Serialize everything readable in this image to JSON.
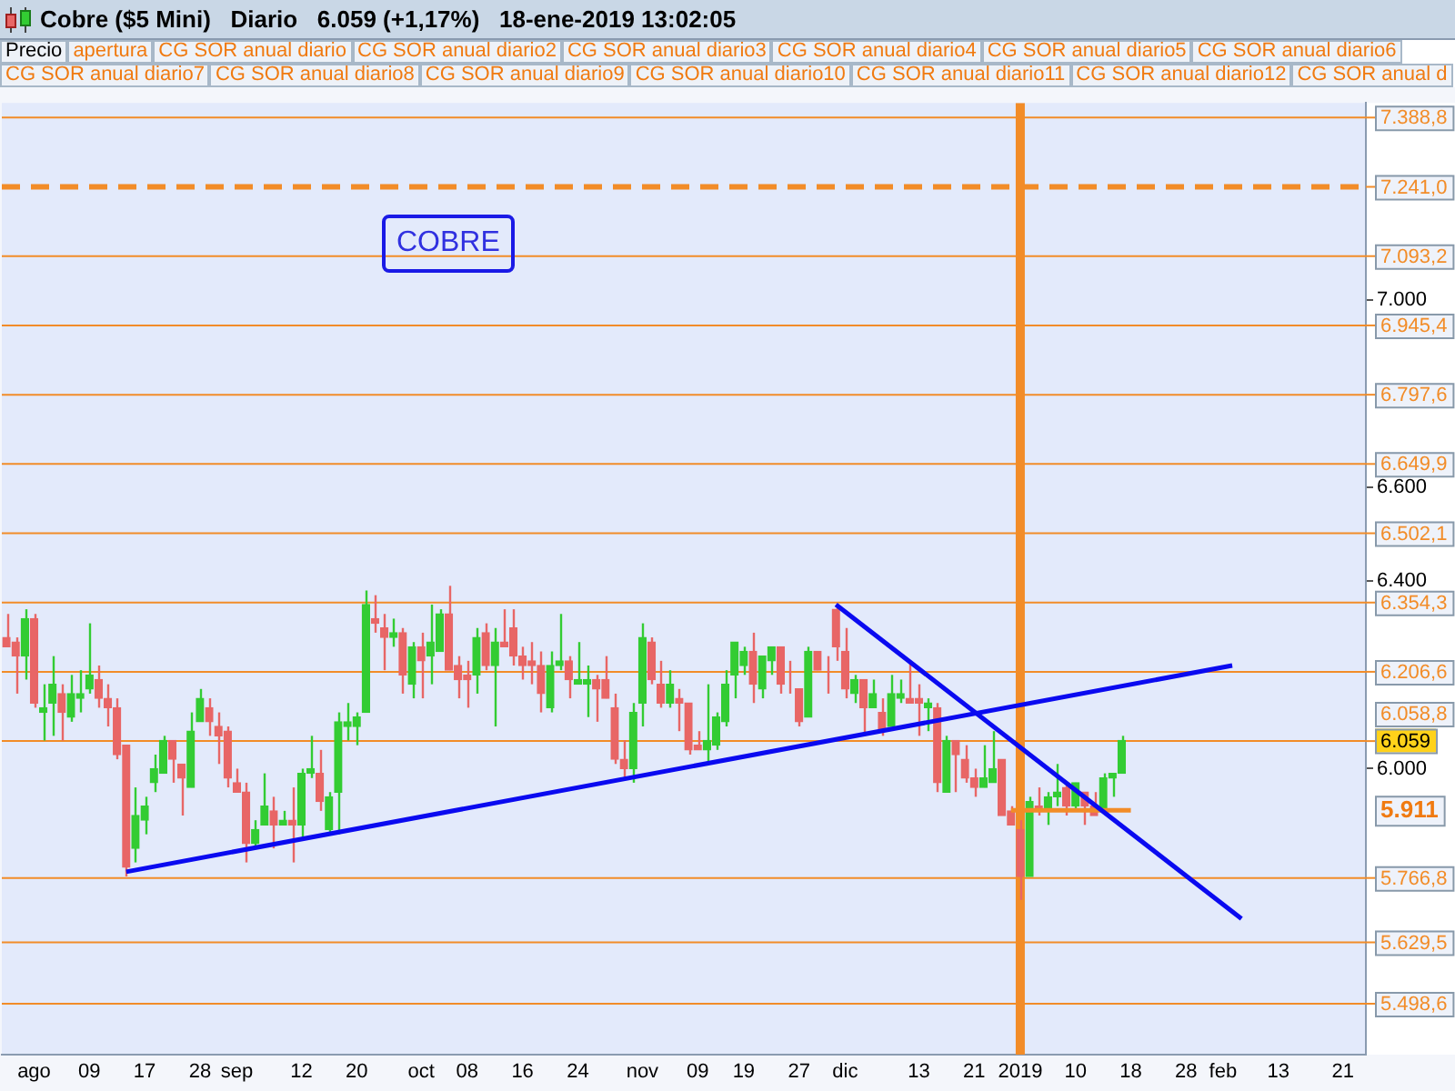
{
  "chart_data": {
    "type": "candlestick",
    "title": "Cobre ($5 Mini)   Diario   6.059 (+1,17%)   18-ene-2019 13:02:05",
    "categories": [
      null,
      null,
      null,
      "ago",
      null,
      null,
      null,
      null,
      null,
      "09",
      null,
      null,
      null,
      null,
      null,
      "17",
      null,
      null,
      null,
      null,
      null,
      "28",
      null,
      null,
      null,
      "sep",
      null,
      null,
      null,
      null,
      null,
      null,
      "12",
      null,
      null,
      null,
      null,
      null,
      "20",
      null,
      null,
      null,
      null,
      null,
      null,
      "oct",
      null,
      null,
      null,
      null,
      "08",
      null,
      null,
      null,
      null,
      null,
      "16",
      null,
      null,
      null,
      null,
      null,
      "24",
      null,
      null,
      null,
      null,
      null,
      null,
      "nov",
      null,
      null,
      null,
      null,
      null,
      "09",
      null,
      null,
      null,
      null,
      "19",
      null,
      null,
      null,
      null,
      null,
      "27",
      null,
      null,
      null,
      null,
      "dic",
      null,
      null,
      null,
      null,
      null,
      null,
      null,
      "13",
      null,
      null,
      null,
      null,
      null,
      "21",
      null,
      null,
      null,
      null,
      "2019",
      null,
      null,
      null,
      null,
      null,
      "10",
      null,
      null,
      null,
      null,
      null,
      "18",
      null,
      null,
      null,
      null,
      null,
      "28",
      null,
      null,
      null,
      "feb",
      null,
      null,
      null,
      null,
      null,
      "13",
      null,
      null,
      null,
      null,
      null,
      null,
      "21",
      null,
      null
    ],
    "ohlc": [
      [
        6280,
        6330,
        6260,
        6260
      ],
      [
        6270,
        6280,
        6160,
        6240
      ],
      [
        6240,
        6340,
        6190,
        6320
      ],
      [
        6320,
        6330,
        6130,
        6140
      ],
      [
        6120,
        6180,
        6060,
        6130
      ],
      [
        6140,
        6240,
        6070,
        6180
      ],
      [
        6160,
        6180,
        6060,
        6120
      ],
      [
        6110,
        6200,
        6100,
        6160
      ],
      [
        6150,
        6210,
        6120,
        6160
      ],
      [
        6170,
        6310,
        6160,
        6200
      ],
      [
        6190,
        6220,
        6130,
        6150
      ],
      [
        6150,
        6180,
        6090,
        6130
      ],
      [
        6130,
        6150,
        6020,
        6030
      ],
      [
        6050,
        6050,
        5770,
        5790
      ],
      [
        5830,
        5960,
        5800,
        5900
      ],
      [
        5890,
        5940,
        5860,
        5920
      ],
      [
        5970,
        6030,
        5950,
        6000
      ],
      [
        5990,
        6070,
        5990,
        6060
      ],
      [
        6060,
        6060,
        5970,
        6020
      ],
      [
        6010,
        6010,
        5900,
        5980
      ],
      [
        5960,
        6120,
        5960,
        6080
      ],
      [
        6100,
        6170,
        6100,
        6150
      ],
      [
        6130,
        6150,
        6070,
        6100
      ],
      [
        6090,
        6120,
        6010,
        6070
      ],
      [
        6080,
        6090,
        5960,
        5980
      ],
      [
        5970,
        6000,
        5950,
        5950
      ],
      [
        5950,
        5970,
        5800,
        5840
      ],
      [
        5840,
        5890,
        5830,
        5870
      ],
      [
        5880,
        5990,
        5880,
        5920
      ],
      [
        5910,
        5940,
        5830,
        5880
      ],
      [
        5880,
        5910,
        5880,
        5890
      ],
      [
        5890,
        5960,
        5800,
        5880
      ],
      [
        5880,
        6000,
        5850,
        5990
      ],
      [
        5990,
        6070,
        5980,
        6000
      ],
      [
        5990,
        6040,
        5910,
        5930
      ],
      [
        5870,
        5950,
        5860,
        5940
      ],
      [
        5950,
        6120,
        5860,
        6100
      ],
      [
        6090,
        6140,
        6060,
        6100
      ],
      [
        6090,
        6120,
        6050,
        6110
      ],
      [
        6120,
        6380,
        6120,
        6350
      ],
      [
        6320,
        6370,
        6290,
        6310
      ],
      [
        6300,
        6330,
        6210,
        6280
      ],
      [
        6280,
        6320,
        6260,
        6290
      ],
      [
        6290,
        6300,
        6160,
        6200
      ],
      [
        6180,
        6270,
        6150,
        6260
      ],
      [
        6260,
        6290,
        6150,
        6230
      ],
      [
        6240,
        6350,
        6180,
        6270
      ],
      [
        6250,
        6340,
        6250,
        6330
      ],
      [
        6330,
        6390,
        6210,
        6210
      ],
      [
        6220,
        6240,
        6150,
        6190
      ],
      [
        6200,
        6230,
        6130,
        6190
      ],
      [
        6200,
        6300,
        6160,
        6280
      ],
      [
        6290,
        6310,
        6210,
        6220
      ],
      [
        6220,
        6300,
        6090,
        6270
      ],
      [
        6270,
        6340,
        6260,
        6260
      ],
      [
        6300,
        6340,
        6220,
        6240
      ],
      [
        6240,
        6260,
        6190,
        6220
      ],
      [
        6230,
        6270,
        6180,
        6220
      ],
      [
        6220,
        6250,
        6120,
        6160
      ],
      [
        6130,
        6250,
        6120,
        6220
      ],
      [
        6220,
        6330,
        6210,
        6230
      ],
      [
        6230,
        6240,
        6150,
        6190
      ],
      [
        6180,
        6270,
        6180,
        6190
      ],
      [
        6180,
        6220,
        6110,
        6190
      ],
      [
        6190,
        6200,
        6100,
        6170
      ],
      [
        6190,
        6240,
        6150,
        6150
      ],
      [
        6130,
        6160,
        6010,
        6020
      ],
      [
        6020,
        6060,
        5980,
        6000
      ],
      [
        6000,
        6140,
        5970,
        6120
      ],
      [
        6140,
        6310,
        6090,
        6280
      ],
      [
        6270,
        6280,
        6180,
        6190
      ],
      [
        6180,
        6230,
        6130,
        6140
      ],
      [
        6140,
        6210,
        6130,
        6180
      ],
      [
        6150,
        6170,
        6080,
        6140
      ],
      [
        6140,
        6140,
        6030,
        6040
      ],
      [
        6050,
        6080,
        6040,
        6040
      ],
      [
        6040,
        6180,
        6010,
        6060
      ],
      [
        6050,
        6120,
        6040,
        6110
      ],
      [
        6100,
        6210,
        6090,
        6180
      ],
      [
        6200,
        6270,
        6150,
        6270
      ],
      [
        6220,
        6260,
        6200,
        6250
      ],
      [
        6250,
        6290,
        6140,
        6180
      ],
      [
        6170,
        6240,
        6150,
        6240
      ],
      [
        6230,
        6260,
        6200,
        6260
      ],
      [
        6260,
        6260,
        6160,
        6180
      ],
      [
        6180,
        6230,
        6160,
        6180
      ],
      [
        6170,
        6170,
        6090,
        6100
      ],
      [
        6110,
        6260,
        6110,
        6250
      ],
      [
        6250,
        6250,
        6210,
        6210
      ],
      [
        6200,
        6240,
        6160,
        6200
      ],
      [
        6340,
        6350,
        6230,
        6260
      ],
      [
        6250,
        6300,
        6150,
        6170
      ],
      [
        6160,
        6200,
        6140,
        6190
      ],
      [
        6190,
        6190,
        6070,
        6130
      ],
      [
        6130,
        6190,
        6130,
        6160
      ],
      [
        6120,
        6150,
        6070,
        6080
      ],
      [
        6090,
        6200,
        6090,
        6160
      ],
      [
        6150,
        6190,
        6140,
        6160
      ],
      [
        6150,
        6230,
        6140,
        6140
      ],
      [
        6150,
        6180,
        6070,
        6140
      ],
      [
        6130,
        6150,
        6080,
        6140
      ],
      [
        6130,
        6140,
        5950,
        5970
      ],
      [
        5950,
        6070,
        5950,
        6060
      ],
      [
        6060,
        6060,
        5950,
        6030
      ],
      [
        6020,
        6050,
        5970,
        5980
      ],
      [
        5980,
        6000,
        5940,
        5960
      ],
      [
        5960,
        6050,
        5960,
        5980
      ],
      [
        5970,
        6080,
        5970,
        6000
      ],
      [
        6020,
        6020,
        5900,
        5900
      ],
      [
        5910,
        5920,
        5880,
        5880
      ],
      [
        5870,
        5890,
        5720,
        5770
      ],
      [
        5770,
        5940,
        5770,
        5930
      ],
      [
        5920,
        5960,
        5900,
        5910
      ],
      [
        5910,
        5950,
        5880,
        5940
      ],
      [
        5940,
        6010,
        5920,
        5950
      ],
      [
        5960,
        5970,
        5900,
        5920
      ],
      [
        5920,
        5970,
        5910,
        5970
      ],
      [
        5950,
        5950,
        5880,
        5920
      ],
      [
        5920,
        5950,
        5900,
        5900
      ],
      [
        5910,
        5990,
        5910,
        5980
      ],
      [
        5980,
        5990,
        5940,
        5990
      ],
      [
        5990,
        6070,
        5990,
        6060
      ],
      null,
      null,
      null,
      null,
      null,
      null,
      null,
      null,
      null,
      null,
      null,
      null,
      null,
      null,
      null,
      null,
      null,
      null,
      null,
      null,
      null,
      null,
      null,
      null,
      null,
      null
    ],
    "colors": [
      "#e86666",
      "#e86666",
      "#33cc33",
      "#e86666",
      "#33cc33",
      "#33cc33",
      "#e86666",
      "#33cc33",
      "#33cc33",
      "#33cc33",
      "#e86666",
      "#e86666",
      "#e86666",
      "#e86666",
      "#33cc33",
      "#33cc33",
      "#33cc33",
      "#33cc33",
      "#e86666",
      "#e86666",
      "#33cc33",
      "#33cc33",
      "#e86666",
      "#e86666",
      "#e86666",
      "#e86666",
      "#e86666",
      "#33cc33",
      "#33cc33",
      "#e86666",
      "#33cc33",
      "#e86666",
      "#33cc33",
      "#33cc33",
      "#e86666",
      "#33cc33",
      "#33cc33",
      "#33cc33",
      "#33cc33",
      "#33cc33",
      "#e86666",
      "#e86666",
      "#33cc33",
      "#e86666",
      "#33cc33",
      "#e86666",
      "#33cc33",
      "#33cc33",
      "#e86666",
      "#e86666",
      "#e86666",
      "#33cc33",
      "#e86666",
      "#33cc33",
      "#e86666",
      "#e86666",
      "#e86666",
      "#e86666",
      "#e86666",
      "#33cc33",
      "#33cc33",
      "#e86666",
      "#33cc33",
      "#33cc33",
      "#e86666",
      "#e86666",
      "#e86666",
      "#e86666",
      "#33cc33",
      "#33cc33",
      "#e86666",
      "#e86666",
      "#33cc33",
      "#e86666",
      "#e86666",
      "#e86666",
      "#33cc33",
      "#33cc33",
      "#33cc33",
      "#33cc33",
      "#33cc33",
      "#e86666",
      "#33cc33",
      "#33cc33",
      "#e86666",
      "#e86666",
      "#e86666",
      "#33cc33",
      "#e86666",
      "#e86666",
      "#e86666",
      "#e86666",
      "#33cc33",
      "#e86666",
      "#33cc33",
      "#e86666",
      "#33cc33",
      "#33cc33",
      "#e86666",
      "#e86666",
      "#33cc33",
      "#e86666",
      "#33cc33",
      "#e86666",
      "#e86666",
      "#e86666",
      "#33cc33",
      "#33cc33",
      "#e86666",
      "#e86666",
      "#e86666",
      "#33cc33",
      "#e86666",
      "#33cc33",
      "#33cc33",
      "#e86666",
      "#33cc33",
      "#e86666",
      "#e86666",
      "#33cc33",
      "#33cc33",
      "#33cc33",
      null,
      null,
      null,
      null,
      null,
      null,
      null,
      null,
      null,
      null,
      null,
      null,
      null,
      null,
      null,
      null,
      null,
      null,
      null,
      null,
      null,
      null,
      null,
      null,
      null,
      null
    ],
    "ylim": [
      5390,
      7420
    ],
    "yticks": [
      {
        "value": 6000,
        "label": "6.000"
      },
      {
        "value": 6400,
        "label": "6.400"
      },
      {
        "value": 6600,
        "label": "6.600"
      },
      {
        "value": 7000,
        "label": "7.000"
      }
    ],
    "grid": false,
    "legend": false,
    "series": [
      {
        "type": "line",
        "color": "#0a0af0",
        "values": [
          null,
          null,
          null,
          null,
          null,
          null,
          null,
          null,
          null,
          null,
          null,
          null,
          null,
          5780,
          null,
          null,
          null,
          null,
          null,
          null,
          null,
          null,
          null,
          null,
          null,
          null,
          null,
          null,
          null,
          null,
          null,
          null,
          null,
          null,
          null,
          null,
          null,
          null,
          null,
          null,
          null,
          null,
          null,
          null,
          null,
          null,
          null,
          null,
          null,
          null,
          null,
          null,
          null,
          null,
          null,
          null,
          null,
          null,
          null,
          null,
          null,
          null,
          null,
          null,
          null,
          null,
          null,
          null,
          null,
          null,
          null,
          null,
          null,
          null,
          null,
          null,
          null,
          null,
          null,
          null,
          null,
          null,
          null,
          null,
          null,
          null,
          null,
          null,
          null,
          null,
          null,
          null,
          null,
          null,
          null,
          null,
          null,
          null,
          null,
          null,
          null,
          null,
          null,
          null,
          null,
          null,
          null,
          null,
          null,
          null,
          null,
          null,
          null,
          null,
          null,
          null,
          null,
          null,
          null,
          null,
          null,
          null,
          null,
          null,
          null,
          null,
          null,
          null,
          null,
          null,
          null,
          null,
          null,
          6220,
          null,
          null,
          null,
          null,
          null,
          null,
          null,
          null,
          null,
          null,
          null,
          null,
          null,
          null
        ]
      },
      {
        "type": "line",
        "color": "#0a0af0",
        "values": [
          null,
          null,
          null,
          null,
          null,
          null,
          null,
          null,
          null,
          null,
          null,
          null,
          null,
          null,
          null,
          null,
          null,
          null,
          null,
          null,
          null,
          null,
          null,
          null,
          null,
          null,
          null,
          null,
          null,
          null,
          null,
          null,
          null,
          null,
          null,
          null,
          null,
          null,
          null,
          null,
          null,
          null,
          null,
          null,
          null,
          null,
          null,
          null,
          null,
          null,
          null,
          null,
          null,
          null,
          null,
          null,
          null,
          null,
          null,
          null,
          null,
          null,
          null,
          null,
          null,
          null,
          null,
          null,
          null,
          null,
          null,
          null,
          null,
          null,
          null,
          null,
          null,
          null,
          null,
          null,
          null,
          null,
          null,
          null,
          null,
          null,
          null,
          null,
          null,
          null,
          6350,
          null,
          null,
          null,
          null,
          null,
          null,
          null,
          null,
          null,
          null,
          null,
          null,
          null,
          null,
          null,
          null,
          null,
          null,
          null,
          null,
          null,
          null,
          null,
          null,
          null,
          null,
          null,
          null,
          null,
          null,
          null,
          null,
          null,
          null,
          null,
          null,
          null,
          null,
          null,
          null,
          null,
          null,
          null,
          5680,
          null,
          null,
          null,
          null,
          null,
          null,
          null,
          null,
          null,
          null,
          null,
          null,
          null
        ]
      },
      {
        "type": "line",
        "color": "#f28c28",
        "values": [
          null,
          null,
          null,
          null,
          null,
          null,
          null,
          null,
          null,
          null,
          null,
          null,
          null,
          null,
          null,
          null,
          null,
          null,
          null,
          null,
          null,
          null,
          null,
          null,
          null,
          null,
          null,
          null,
          null,
          null,
          null,
          null,
          null,
          null,
          null,
          null,
          null,
          null,
          null,
          null,
          null,
          null,
          null,
          null,
          null,
          null,
          null,
          null,
          null,
          null,
          null,
          null,
          null,
          null,
          null,
          null,
          null,
          null,
          null,
          null,
          null,
          null,
          null,
          null,
          null,
          null,
          null,
          null,
          null,
          null,
          null,
          null,
          null,
          null,
          null,
          null,
          null,
          null,
          null,
          null,
          null,
          null,
          null,
          null,
          null,
          null,
          null,
          null,
          null,
          null,
          null,
          null,
          null,
          null,
          null,
          null,
          null,
          null,
          null,
          null,
          null,
          null,
          null,
          null,
          null,
          null,
          null,
          null,
          null,
          5911,
          null,
          null,
          null,
          null,
          null,
          null,
          null,
          null,
          null,
          null,
          null,
          null,
          5911,
          null,
          null,
          null,
          null,
          null,
          null,
          null,
          null,
          null,
          null,
          null,
          null,
          null,
          null,
          null,
          null,
          null,
          null,
          null,
          null,
          null,
          null,
          null,
          null,
          null
        ]
      }
    ],
    "ref_lines": [
      {
        "axis": "y",
        "value": 7388.8,
        "label": "7.388,8",
        "color": "#f28c28"
      },
      {
        "axis": "y",
        "value": 7241,
        "label": "7.241,0",
        "color": "#f28c28",
        "line_style": "dashed"
      },
      {
        "axis": "y",
        "value": 7093.2,
        "label": "7.093,2",
        "color": "#f28c28"
      },
      {
        "axis": "y",
        "value": 6945.4,
        "label": "6.945,4",
        "color": "#f28c28"
      },
      {
        "axis": "y",
        "value": 6797.6,
        "label": "6.797,6",
        "color": "#f28c28"
      },
      {
        "axis": "y",
        "value": 6649.9,
        "label": "6.649,9",
        "color": "#f28c28"
      },
      {
        "axis": "y",
        "value": 6502.1,
        "label": "6.502,1",
        "color": "#f28c28"
      },
      {
        "axis": "y",
        "value": 6354.3,
        "label": "6.354,3",
        "color": "#f28c28"
      },
      {
        "axis": "y",
        "value": 6206.6,
        "label": "6.206,6",
        "color": "#f28c28"
      },
      {
        "axis": "y",
        "value": 6058.8,
        "label": "6.058,8",
        "color": "#f28c28"
      },
      {
        "axis": "y",
        "value": 5766.8,
        "label": "5.766,8",
        "color": "#f28c28"
      },
      {
        "axis": "y",
        "value": 5629.5,
        "label": "5.629,5",
        "color": "#f28c28"
      },
      {
        "axis": "y",
        "value": 5498.6,
        "label": "5.498,6",
        "color": "#f28c28"
      },
      {
        "axis": "x",
        "value": "2019",
        "color": "#f28c28"
      }
    ],
    "annotations": [
      "Precio",
      "apertura",
      "CG SOR anual diario",
      "CG SOR anual diario2",
      "CG SOR anual diario3",
      "CG SOR anual diario4",
      "CG SOR anual diario5",
      "CG SOR anual diario6",
      "CG SOR anual diario7",
      "CG SOR anual diario8",
      "CG SOR anual diario9",
      "CG SOR anual diario10",
      "CG SOR anual diario11",
      "CG SOR anual diario12",
      "CG SOR anual d",
      "COBRE",
      "6.059",
      "5.911"
    ]
  }
}
